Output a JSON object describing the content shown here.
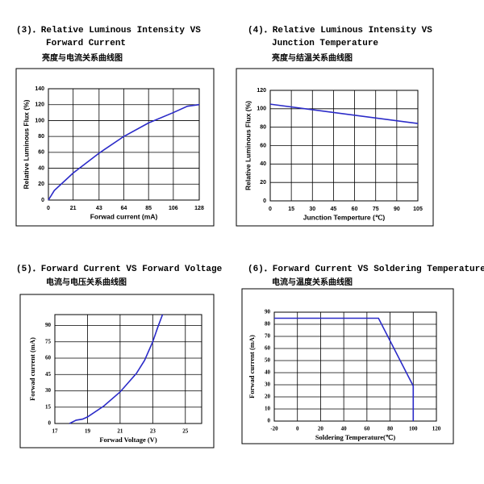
{
  "chart_data": [
    {
      "type": "line",
      "title": [
        "(3)．Relative Luminous Intensity VS",
        "Forward Current"
      ],
      "subtitle": "亮度与电流关系曲线图",
      "xlabel": "Forwad current (mA)",
      "ylabel": "Relative Luminous Flux (%)",
      "x": [
        0,
        5,
        21,
        43,
        64,
        85,
        106,
        118,
        128
      ],
      "values": [
        0,
        12,
        34,
        59,
        80,
        97,
        110,
        118,
        120
      ],
      "color": "#2b2bc8",
      "xlim": [
        0,
        128
      ],
      "xticks": [
        0,
        21,
        43,
        64,
        85,
        106,
        128
      ],
      "ylim": [
        0,
        140
      ],
      "yticks": [
        0,
        20,
        40,
        60,
        80,
        100,
        120,
        140
      ],
      "grid": true
    },
    {
      "type": "line",
      "title": [
        "(4)．Relative Luminous Intensity VS",
        "Junction Temperature"
      ],
      "subtitle": "亮度与结温关系曲线图",
      "xlabel": "Junction Temperture (℃)",
      "ylabel": "Relative Luminous Flux (%)",
      "x": [
        0,
        105
      ],
      "values": [
        105,
        84
      ],
      "color": "#2b2bc8",
      "xlim": [
        0,
        105
      ],
      "xticks": [
        0,
        15,
        30,
        45,
        60,
        75,
        90,
        105
      ],
      "ylim": [
        0,
        120
      ],
      "yticks": [
        0,
        20,
        40,
        60,
        80,
        100,
        120
      ],
      "grid": true
    },
    {
      "type": "line",
      "title": [
        "(5)．Forward Current VS Forward Voltage"
      ],
      "subtitle": "电流与电压关系曲线图",
      "xlabel": "Forwad Voltage (V)",
      "ylabel": "Forwad current (mA)",
      "x": [
        17.9,
        18.3,
        18.7,
        19,
        20,
        21,
        22,
        22.5,
        23,
        23.3,
        23.6
      ],
      "values": [
        0,
        3,
        4,
        6,
        16,
        29,
        46,
        58,
        75,
        88,
        100
      ],
      "color": "#2b2bc8",
      "xlim": [
        17,
        26
      ],
      "xticks": [
        17,
        19,
        21,
        23,
        25
      ],
      "ylim": [
        0,
        100
      ],
      "yticks": [
        0,
        15,
        30,
        45,
        60,
        75,
        90
      ],
      "grid": true
    },
    {
      "type": "line",
      "title": [
        "(6)．Forward Current VS Soldering Temperature"
      ],
      "subtitle": "电流与温度关系曲线图",
      "xlabel": "Soldering Temperature(℃)",
      "ylabel": "Forwad current (mA)",
      "x": [
        -20,
        70,
        100,
        100
      ],
      "values": [
        85,
        85,
        29,
        0
      ],
      "color": "#2b2bc8",
      "xlim": [
        -20,
        120
      ],
      "xticks": [
        -20,
        0,
        20,
        40,
        60,
        80,
        100,
        120
      ],
      "ylim": [
        0,
        90
      ],
      "yticks": [
        0,
        10,
        20,
        30,
        40,
        50,
        60,
        70,
        80,
        90
      ],
      "grid": true
    }
  ]
}
